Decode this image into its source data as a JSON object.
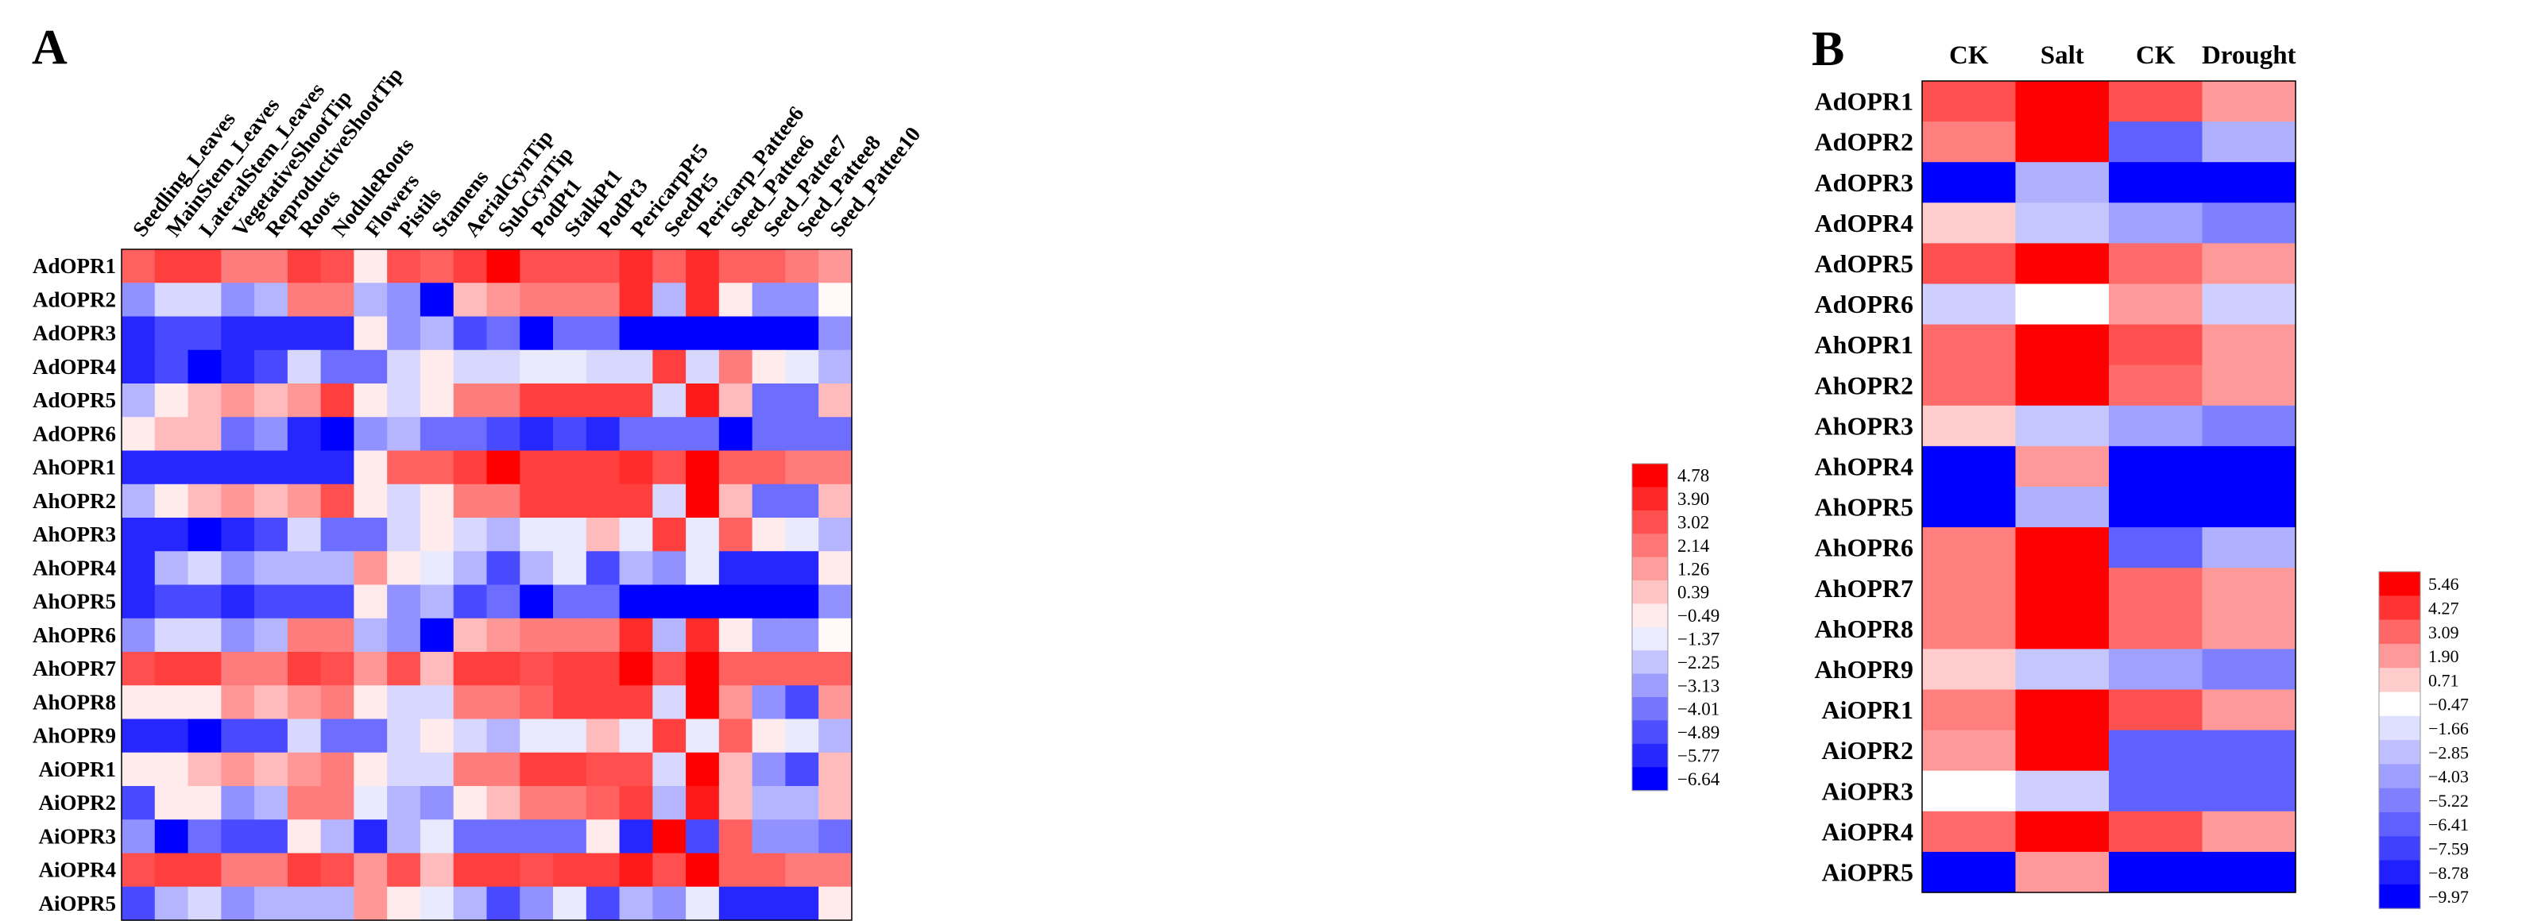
{
  "chart_data": [
    {
      "type": "heatmap",
      "panel": "A",
      "title": "",
      "colors": {
        "high": "#ff0000",
        "mid": "#ffffff",
        "low": "#0000ff"
      },
      "columns": [
        "Seedling_Leaves",
        "MainStem_Leaves",
        "LateralStem_Leaves",
        "VegetativeShootTip",
        "ReproductiveShootTip",
        "Roots",
        "NoduleRoots",
        "Flowers",
        "Pistils",
        "Stamens",
        "AerialGynTip",
        "SubGynTip",
        "PodPt1",
        "StalkPt1",
        "PodPt3",
        "PericarpPt5",
        "SeedPt5",
        "Pericarp_Pattee6",
        "Seed_Pattee6",
        "Seed_Pattee7",
        "Seed_Pattee8",
        "Seed_Pattee10"
      ],
      "rows": [
        "AdOPR1",
        "AdOPR2",
        "AdOPR3",
        "AdOPR4",
        "AdOPR5",
        "AdOPR6",
        "AhOPR1",
        "AhOPR2",
        "AhOPR3",
        "AhOPR4",
        "AhOPR5",
        "AhOPR6",
        "AhOPR7",
        "AhOPR8",
        "AhOPR9",
        "AiOPR1",
        "AiOPR2",
        "AiOPR3",
        "AiOPR4",
        "AiOPR5"
      ],
      "values": [
        [
          2.6,
          3.4,
          3.4,
          2.0,
          2.0,
          3.4,
          3.0,
          -0.49,
          3.0,
          2.6,
          3.4,
          4.78,
          3.0,
          3.0,
          3.0,
          3.8,
          2.6,
          3.8,
          2.6,
          2.6,
          2.0,
          1.4
        ],
        [
          -3.4,
          -1.8,
          -1.8,
          -3.4,
          -2.6,
          2.0,
          2.0,
          -2.6,
          -3.4,
          -6.64,
          0.6,
          1.4,
          2.0,
          2.0,
          2.0,
          3.8,
          -2.6,
          3.8,
          -0.49,
          -3.4,
          -3.4,
          -0.8
        ],
        [
          -5.8,
          -5.0,
          -5.0,
          -5.8,
          -5.8,
          -5.8,
          -5.8,
          -0.49,
          -3.4,
          -2.6,
          -5.0,
          -4.2,
          -6.64,
          -4.2,
          -4.2,
          -6.64,
          -6.64,
          -6.64,
          -6.64,
          -6.64,
          -6.64,
          -3.4
        ],
        [
          -5.8,
          -5.0,
          -6.64,
          -5.8,
          -5.0,
          -1.8,
          -4.2,
          -4.2,
          -1.8,
          -0.49,
          -1.8,
          -1.8,
          -1.4,
          -1.4,
          -1.8,
          -1.8,
          3.4,
          -1.8,
          2.0,
          -0.49,
          -1.4,
          -2.6
        ],
        [
          -2.6,
          -0.49,
          0.6,
          1.4,
          0.6,
          1.4,
          3.4,
          -0.49,
          -1.8,
          -0.49,
          2.0,
          2.0,
          3.4,
          3.4,
          3.4,
          3.4,
          -1.8,
          4.2,
          0.6,
          -4.2,
          -4.2,
          0.6
        ],
        [
          -0.49,
          0.6,
          0.6,
          -4.2,
          -3.4,
          -5.8,
          -6.64,
          -3.4,
          -2.6,
          -4.2,
          -4.2,
          -5.0,
          -5.8,
          -5.0,
          -5.8,
          -4.2,
          -4.2,
          -4.2,
          -6.64,
          -4.2,
          -4.2,
          -4.2
        ],
        [
          -5.8,
          -5.8,
          -5.8,
          -5.8,
          -5.8,
          -5.8,
          -5.8,
          -0.49,
          2.6,
          2.6,
          3.4,
          4.78,
          3.4,
          3.4,
          3.4,
          3.8,
          3.0,
          4.78,
          2.6,
          2.6,
          2.0,
          2.0
        ],
        [
          -2.6,
          -0.49,
          0.6,
          1.4,
          0.6,
          1.4,
          3.0,
          -0.49,
          -1.8,
          -0.49,
          2.0,
          2.0,
          3.4,
          3.4,
          3.4,
          3.4,
          -1.8,
          4.78,
          0.6,
          -4.2,
          -4.2,
          0.6
        ],
        [
          -5.8,
          -5.8,
          -6.64,
          -5.8,
          -5.0,
          -1.8,
          -4.2,
          -4.2,
          -1.8,
          -0.49,
          -1.8,
          -2.6,
          -1.4,
          -1.4,
          0.6,
          -1.4,
          3.4,
          -1.4,
          2.6,
          -0.49,
          -1.4,
          -2.6
        ],
        [
          -5.8,
          -2.6,
          -1.8,
          -3.4,
          -2.6,
          -2.6,
          -2.6,
          1.4,
          -0.49,
          -1.4,
          -2.6,
          -5.0,
          -2.6,
          -1.4,
          -5.0,
          -2.6,
          -3.4,
          -1.4,
          -5.8,
          -5.8,
          -5.8,
          -0.49
        ],
        [
          -5.8,
          -5.0,
          -5.0,
          -5.8,
          -5.0,
          -5.0,
          -5.0,
          -0.49,
          -3.4,
          -2.6,
          -5.0,
          -4.2,
          -6.64,
          -4.2,
          -4.2,
          -6.64,
          -6.64,
          -6.64,
          -6.64,
          -6.64,
          -6.64,
          -3.4
        ],
        [
          -3.4,
          -1.8,
          -1.8,
          -3.4,
          -2.6,
          2.0,
          2.0,
          -2.6,
          -3.4,
          -6.64,
          0.6,
          1.4,
          2.0,
          2.0,
          2.0,
          3.8,
          -2.6,
          3.8,
          -0.49,
          -3.4,
          -3.4,
          -0.8
        ],
        [
          3.0,
          3.4,
          3.4,
          2.0,
          2.0,
          3.4,
          3.0,
          1.4,
          3.0,
          0.6,
          3.4,
          3.4,
          3.0,
          3.4,
          3.4,
          4.78,
          3.0,
          4.78,
          2.6,
          2.6,
          2.6,
          2.6
        ],
        [
          -0.49,
          -0.49,
          -0.49,
          1.4,
          0.6,
          1.4,
          2.0,
          -0.49,
          -1.8,
          -1.8,
          2.0,
          2.0,
          2.6,
          3.4,
          3.4,
          3.4,
          -1.8,
          4.78,
          1.4,
          -3.4,
          -5.0,
          1.4
        ],
        [
          -5.8,
          -5.8,
          -6.64,
          -5.0,
          -5.0,
          -1.8,
          -4.2,
          -4.2,
          -1.8,
          -0.49,
          -1.8,
          -2.6,
          -1.4,
          -1.4,
          0.6,
          -1.4,
          3.4,
          -1.4,
          2.6,
          -0.49,
          -1.4,
          -2.6
        ],
        [
          -0.49,
          -0.49,
          0.6,
          1.4,
          0.6,
          1.4,
          2.0,
          -0.49,
          -1.8,
          -1.8,
          2.0,
          2.0,
          3.4,
          3.4,
          3.0,
          3.0,
          -1.8,
          4.78,
          0.6,
          -3.4,
          -5.0,
          0.6
        ],
        [
          -5.0,
          -0.49,
          -0.49,
          -3.4,
          -2.6,
          2.0,
          2.0,
          -1.4,
          -2.6,
          -3.4,
          -0.49,
          0.6,
          2.0,
          2.0,
          2.6,
          3.4,
          -2.6,
          4.2,
          0.6,
          -2.6,
          -2.6,
          0.6
        ],
        [
          -3.4,
          -6.64,
          -4.2,
          -5.0,
          -5.0,
          -0.49,
          -2.6,
          -5.8,
          -2.6,
          -1.4,
          -4.2,
          -4.2,
          -4.2,
          -4.2,
          -0.49,
          -5.8,
          4.78,
          -5.0,
          2.6,
          -3.4,
          -3.4,
          -4.2
        ],
        [
          3.0,
          3.4,
          3.4,
          2.0,
          2.0,
          3.4,
          3.0,
          1.4,
          3.0,
          0.6,
          3.4,
          3.4,
          3.0,
          3.4,
          3.4,
          4.2,
          3.0,
          4.78,
          2.6,
          2.6,
          2.0,
          2.0
        ],
        [
          -5.0,
          -2.6,
          -1.8,
          -3.4,
          -2.6,
          -2.6,
          -2.6,
          1.4,
          -0.49,
          -1.4,
          -2.6,
          -5.0,
          -3.4,
          -1.4,
          -5.0,
          -2.6,
          -3.4,
          -1.4,
          -5.8,
          -5.8,
          -5.8,
          -0.49
        ]
      ],
      "legend_ticks": [
        4.78,
        3.9,
        3.02,
        2.14,
        1.26,
        0.39,
        -0.49,
        -1.37,
        -2.25,
        -3.13,
        -4.01,
        -4.89,
        -5.77,
        -6.64
      ],
      "legend_ticks_text": [
        "4.78",
        "3.90",
        "3.02",
        "2.14",
        "1.26",
        "0.39",
        "−0.49",
        "−1.37",
        "−2.25",
        "−3.13",
        "−4.01",
        "−4.89",
        "−5.77",
        "−6.64"
      ]
    },
    {
      "type": "heatmap",
      "panel": "B",
      "title": "",
      "colors": {
        "high": "#ff0000",
        "mid": "#ffffff",
        "low": "#0000ff"
      },
      "columns": [
        "CK",
        "Salt",
        "CK",
        "Drought"
      ],
      "rows": [
        "AdOPR1",
        "AdOPR2",
        "AdOPR3",
        "AdOPR4",
        "AdOPR5",
        "AdOPR6",
        "AhOPR1",
        "AhOPR2",
        "AhOPR3",
        "AhOPR4",
        "AhOPR5",
        "AhOPR6",
        "AhOPR7",
        "AhOPR8",
        "AhOPR9",
        "AiOPR1",
        "AiOPR2",
        "AiOPR3",
        "AiOPR4",
        "AiOPR5"
      ],
      "values": [
        [
          3.6,
          5.46,
          3.6,
          1.9
        ],
        [
          2.5,
          5.46,
          -6.4,
          -3.4
        ],
        [
          -9.97,
          -3.4,
          -9.97,
          -9.97
        ],
        [
          0.7,
          -2.6,
          -4.0,
          -5.2
        ],
        [
          3.6,
          5.46,
          3.0,
          1.9
        ],
        [
          -2.3,
          -0.47,
          1.9,
          -2.3
        ],
        [
          3.0,
          5.46,
          3.6,
          1.9
        ],
        [
          3.0,
          5.46,
          3.0,
          1.9
        ],
        [
          0.7,
          -2.6,
          -4.0,
          -5.2
        ],
        [
          -9.97,
          1.9,
          -9.97,
          -9.97
        ],
        [
          -9.97,
          -3.4,
          -9.97,
          -9.97
        ],
        [
          2.5,
          5.46,
          -6.4,
          -3.4
        ],
        [
          2.5,
          5.46,
          3.0,
          1.9
        ],
        [
          2.5,
          5.46,
          3.0,
          1.9
        ],
        [
          0.7,
          -2.6,
          -4.0,
          -5.2
        ],
        [
          2.5,
          5.46,
          3.6,
          1.9
        ],
        [
          1.9,
          5.46,
          -6.4,
          -6.4
        ],
        [
          -0.47,
          -2.3,
          -6.4,
          -6.4
        ],
        [
          3.0,
          5.46,
          3.6,
          1.9
        ],
        [
          -9.97,
          1.9,
          -9.97,
          -9.97
        ]
      ],
      "legend_ticks": [
        5.46,
        4.27,
        3.09,
        1.9,
        0.71,
        -0.47,
        -1.66,
        -2.85,
        -4.03,
        -5.22,
        -6.41,
        -7.59,
        -8.78,
        -9.97
      ],
      "legend_ticks_text": [
        "5.46",
        "4.27",
        "3.09",
        "1.90",
        "0.71",
        "−0.47",
        "−1.66",
        "−2.85",
        "−4.03",
        "−5.22",
        "−6.41",
        "−7.59",
        "−8.78",
        "−9.97"
      ]
    }
  ]
}
